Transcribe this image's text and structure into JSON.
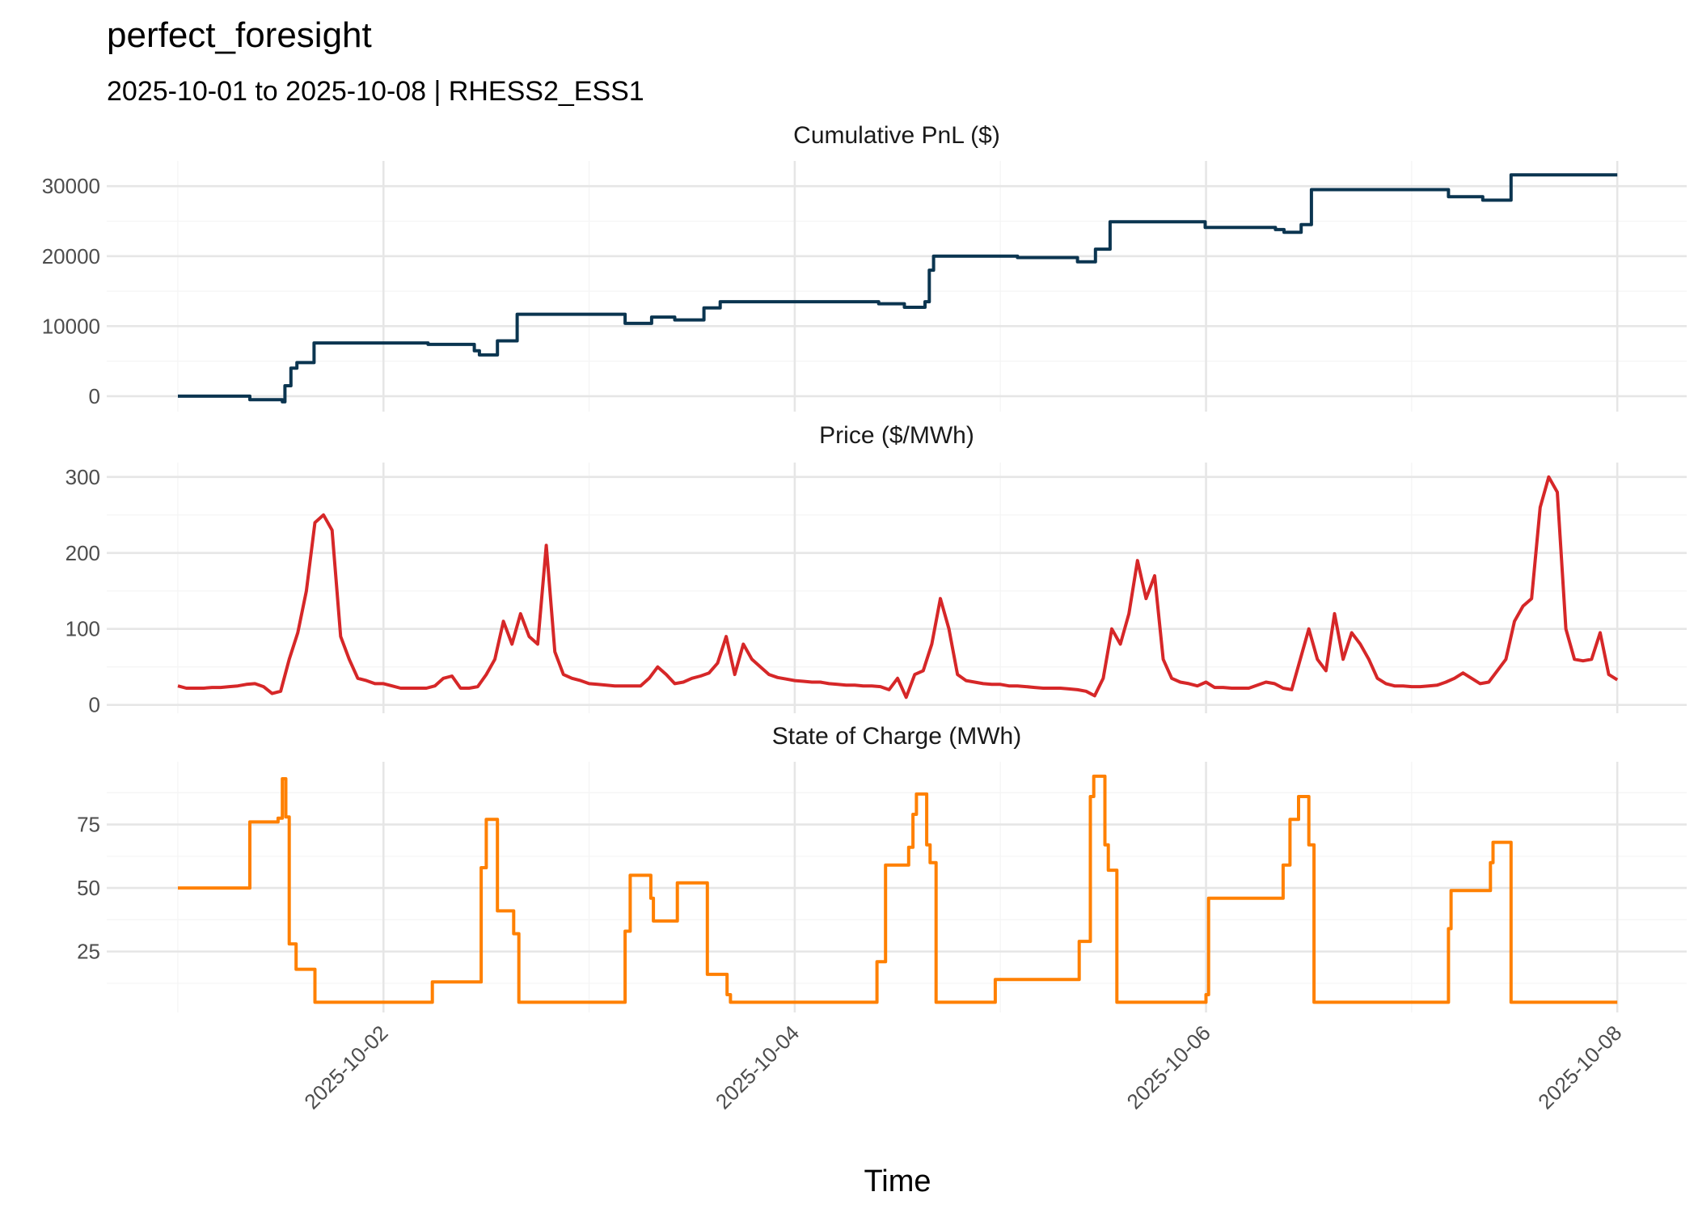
{
  "chart_data": {
    "type": "line",
    "title": "perfect_foresight",
    "subtitle": "2025-10-01 to 2025-10-08 | RHESS2_ESS1",
    "xlabel": "Time",
    "x_unit": "hours since 2025-10-01 00:00",
    "xlim_hours": [
      -8.3,
      176.1
    ],
    "x_major_ticks": [
      {
        "hours": 24,
        "label": "2025-10-02"
      },
      {
        "hours": 72,
        "label": "2025-10-04"
      },
      {
        "hours": 120,
        "label": "2025-10-06"
      },
      {
        "hours": 168,
        "label": "2025-10-08"
      }
    ],
    "x_minor_ticks_hours": [
      0,
      48,
      96,
      144
    ],
    "grid": true,
    "legend": "none",
    "panels": [
      {
        "strip_title": "Cumulative PnL ($)",
        "color": "#0b3550",
        "style": "step",
        "ylim": [
          -2200,
          33600
        ],
        "y_major_ticks": [
          0,
          10000,
          20000,
          30000
        ],
        "y_tick_labels": [
          "0",
          "10000",
          "20000",
          "30000"
        ],
        "y_minor_ticks": [
          5000,
          15000,
          25000
        ],
        "points": [
          [
            0,
            0
          ],
          [
            8.4,
            -500
          ],
          [
            12.2,
            -800
          ],
          [
            12.5,
            1500
          ],
          [
            13.2,
            4000
          ],
          [
            13.9,
            4800
          ],
          [
            15.9,
            7600
          ],
          [
            29.2,
            7400
          ],
          [
            34.6,
            6500
          ],
          [
            35.2,
            5900
          ],
          [
            37.3,
            7900
          ],
          [
            39.6,
            11700
          ],
          [
            52.2,
            10400
          ],
          [
            55.3,
            11300
          ],
          [
            58.0,
            10900
          ],
          [
            61.4,
            12600
          ],
          [
            63.3,
            13500
          ],
          [
            81.8,
            13200
          ],
          [
            84.8,
            12700
          ],
          [
            87.2,
            13500
          ],
          [
            87.7,
            18000
          ],
          [
            88.2,
            20000
          ],
          [
            98.0,
            19800
          ],
          [
            105.0,
            19200
          ],
          [
            107.1,
            21000
          ],
          [
            108.8,
            24900
          ],
          [
            119.9,
            24100
          ],
          [
            128.1,
            23800
          ],
          [
            129.1,
            23400
          ],
          [
            131.1,
            24500
          ],
          [
            132.3,
            29500
          ],
          [
            148.3,
            28500
          ],
          [
            152.3,
            28000
          ],
          [
            155.6,
            31600
          ],
          [
            168,
            31600
          ]
        ]
      },
      {
        "strip_title": "Price ($/MWh)",
        "color": "#d62728",
        "style": "line",
        "ylim": [
          -11,
          319
        ],
        "y_major_ticks": [
          0,
          100,
          200,
          300
        ],
        "y_tick_labels": [
          "0",
          "100",
          "200",
          "300"
        ],
        "y_minor_ticks": [
          50,
          150,
          250
        ],
        "hourly_values": [
          25,
          22,
          22,
          22,
          23,
          23,
          24,
          25,
          27,
          28,
          24,
          15,
          18,
          60,
          95,
          150,
          240,
          250,
          230,
          90,
          60,
          35,
          32,
          28,
          28,
          25,
          22,
          22,
          22,
          22,
          25,
          35,
          38,
          22,
          22,
          24,
          40,
          60,
          110,
          80,
          120,
          90,
          80,
          210,
          70,
          40,
          35,
          32,
          28,
          27,
          26,
          25,
          25,
          25,
          25,
          35,
          50,
          40,
          28,
          30,
          35,
          38,
          42,
          55,
          90,
          40,
          80,
          60,
          50,
          40,
          36,
          34,
          32,
          31,
          30,
          30,
          28,
          27,
          26,
          26,
          25,
          25,
          24,
          20,
          35,
          10,
          40,
          45,
          80,
          140,
          100,
          40,
          32,
          30,
          28,
          27,
          27,
          25,
          25,
          24,
          23,
          22,
          22,
          22,
          21,
          20,
          18,
          12,
          35,
          100,
          80,
          120,
          190,
          140,
          170,
          60,
          35,
          30,
          28,
          25,
          30,
          23,
          23,
          22,
          22,
          22,
          26,
          30,
          28,
          22,
          20,
          60,
          100,
          60,
          45,
          120,
          60,
          95,
          80,
          60,
          35,
          28,
          25,
          25,
          24,
          24,
          25,
          26,
          30,
          35,
          42,
          35,
          28,
          30,
          45,
          60,
          110,
          130,
          140,
          260,
          300,
          280,
          100,
          60,
          58,
          60,
          95,
          40,
          33
        ]
      },
      {
        "strip_title": "State of Charge (MWh)",
        "color": "#ff8000",
        "style": "step",
        "ylim": [
          1,
          99.7
        ],
        "y_major_ticks": [
          25,
          50,
          75
        ],
        "y_tick_labels": [
          "25",
          "50",
          "75"
        ],
        "y_minor_ticks": [
          12.5,
          37.5,
          62.5,
          87.5
        ],
        "points": [
          [
            0,
            50
          ],
          [
            8.4,
            76
          ],
          [
            11.7,
            77.5
          ],
          [
            12.2,
            93
          ],
          [
            12.6,
            78
          ],
          [
            13.0,
            28
          ],
          [
            13.8,
            18
          ],
          [
            16.0,
            5
          ],
          [
            29.7,
            13
          ],
          [
            35.4,
            58
          ],
          [
            36.0,
            77
          ],
          [
            37.3,
            41
          ],
          [
            39.2,
            32
          ],
          [
            39.8,
            5
          ],
          [
            52.2,
            33
          ],
          [
            52.8,
            55
          ],
          [
            55.2,
            46
          ],
          [
            55.5,
            37
          ],
          [
            58.3,
            52
          ],
          [
            61.8,
            16
          ],
          [
            64.1,
            8
          ],
          [
            64.5,
            5
          ],
          [
            81.6,
            21
          ],
          [
            82.6,
            59
          ],
          [
            85.3,
            66
          ],
          [
            85.8,
            79
          ],
          [
            86.2,
            87
          ],
          [
            87.4,
            67
          ],
          [
            87.8,
            60
          ],
          [
            88.5,
            5
          ],
          [
            95.4,
            14
          ],
          [
            105.2,
            29
          ],
          [
            106.5,
            86
          ],
          [
            106.9,
            94
          ],
          [
            108.2,
            67
          ],
          [
            108.6,
            57
          ],
          [
            109.6,
            5
          ],
          [
            120.0,
            8
          ],
          [
            120.3,
            46
          ],
          [
            129.0,
            59
          ],
          [
            129.8,
            77
          ],
          [
            130.8,
            86
          ],
          [
            132.0,
            67
          ],
          [
            132.6,
            5
          ],
          [
            148.3,
            34
          ],
          [
            148.6,
            49
          ],
          [
            153.2,
            60
          ],
          [
            153.5,
            68
          ],
          [
            155.6,
            5
          ],
          [
            168,
            5
          ]
        ]
      }
    ]
  }
}
